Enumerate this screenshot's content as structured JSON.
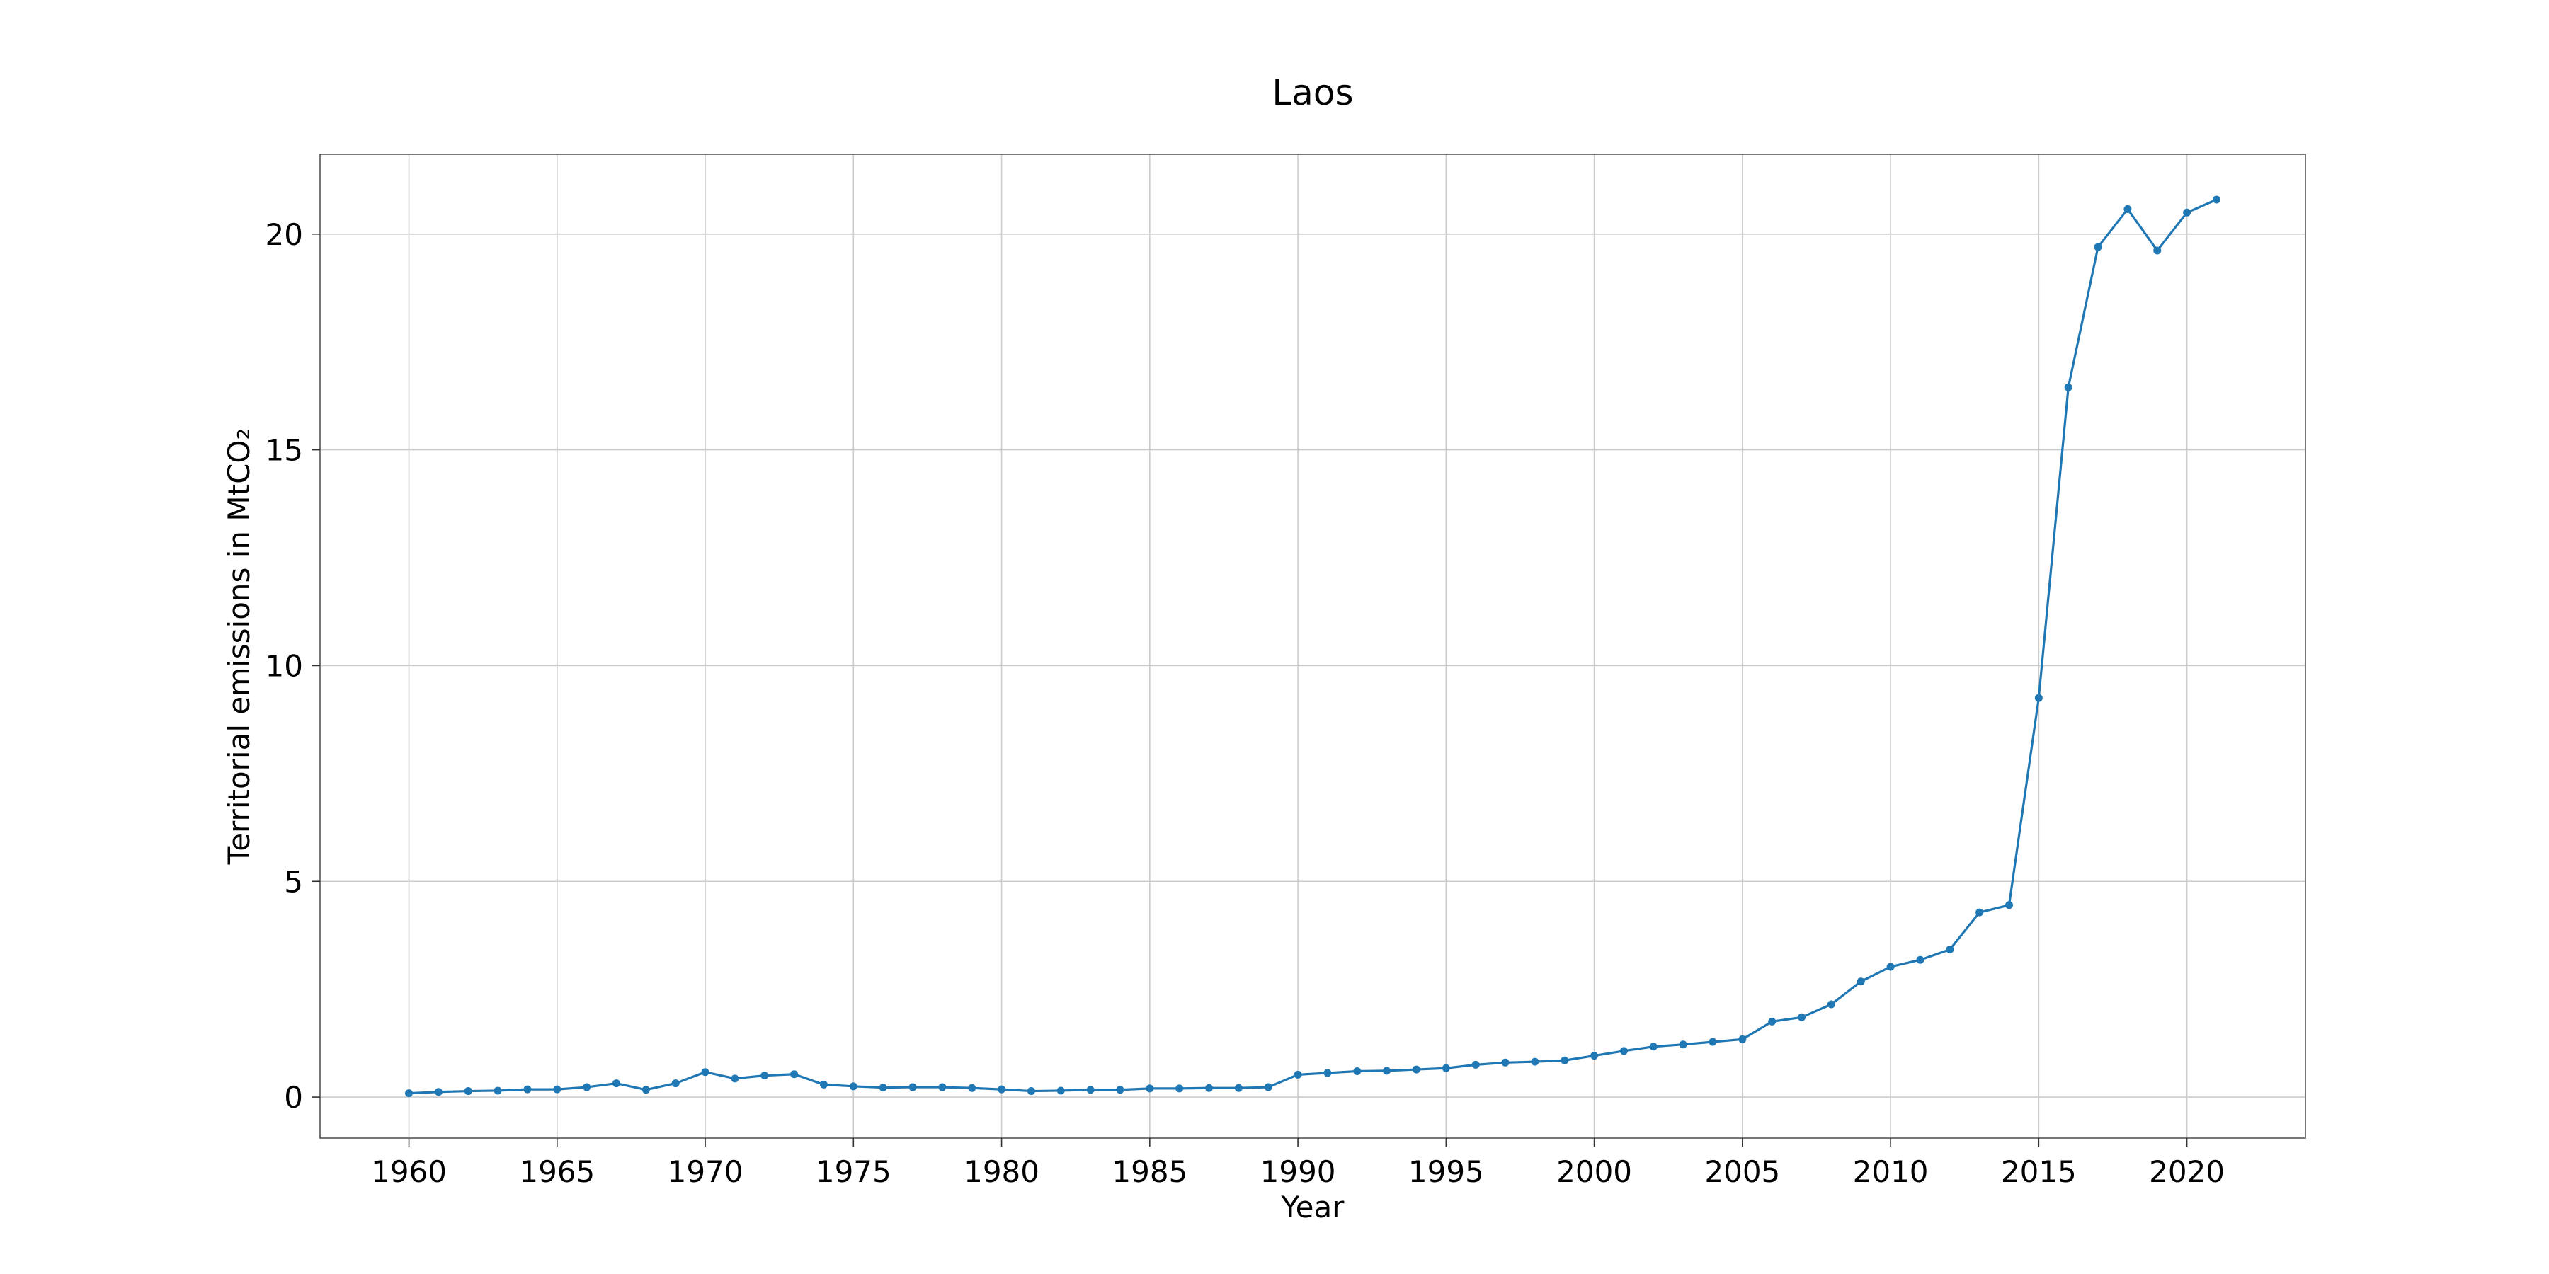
{
  "chart_data": {
    "type": "line",
    "title": "Laos",
    "xlabel": "Year",
    "ylabel": "Territorial emissions in MtCO₂",
    "xlim": [
      1957,
      2024
    ],
    "ylim": [
      -0.95,
      21.85
    ],
    "xticks": [
      1960,
      1965,
      1970,
      1975,
      1980,
      1985,
      1990,
      1995,
      2000,
      2005,
      2010,
      2015,
      2020
    ],
    "yticks": [
      0,
      5,
      10,
      15,
      20
    ],
    "grid": true,
    "legend": "none",
    "series_color": "#1f77b4",
    "series": [
      {
        "x": [
          1960,
          1961,
          1962,
          1963,
          1964,
          1965,
          1966,
          1967,
          1968,
          1969,
          1970,
          1971,
          1972,
          1973,
          1974,
          1975,
          1976,
          1977,
          1978,
          1979,
          1980,
          1981,
          1982,
          1983,
          1984,
          1985,
          1986,
          1987,
          1988,
          1989,
          1990,
          1991,
          1992,
          1993,
          1994,
          1995,
          1996,
          1997,
          1998,
          1999,
          2000,
          2001,
          2002,
          2003,
          2004,
          2005,
          2006,
          2007,
          2008,
          2009,
          2010,
          2011,
          2012,
          2013,
          2014,
          2015,
          2016,
          2017,
          2018,
          2019,
          2020,
          2021
        ],
        "y": [
          0.09,
          0.12,
          0.14,
          0.15,
          0.18,
          0.18,
          0.23,
          0.32,
          0.17,
          0.32,
          0.58,
          0.43,
          0.5,
          0.53,
          0.29,
          0.25,
          0.22,
          0.23,
          0.23,
          0.21,
          0.18,
          0.14,
          0.15,
          0.17,
          0.17,
          0.2,
          0.2,
          0.21,
          0.21,
          0.23,
          0.52,
          0.56,
          0.6,
          0.61,
          0.64,
          0.67,
          0.75,
          0.8,
          0.82,
          0.85,
          0.96,
          1.07,
          1.17,
          1.22,
          1.28,
          1.34,
          1.75,
          1.85,
          2.15,
          2.68,
          3.02,
          3.18,
          3.42,
          4.28,
          4.45,
          9.25,
          16.45,
          19.7,
          20.58,
          19.62,
          20.5,
          20.8
        ]
      }
    ]
  }
}
